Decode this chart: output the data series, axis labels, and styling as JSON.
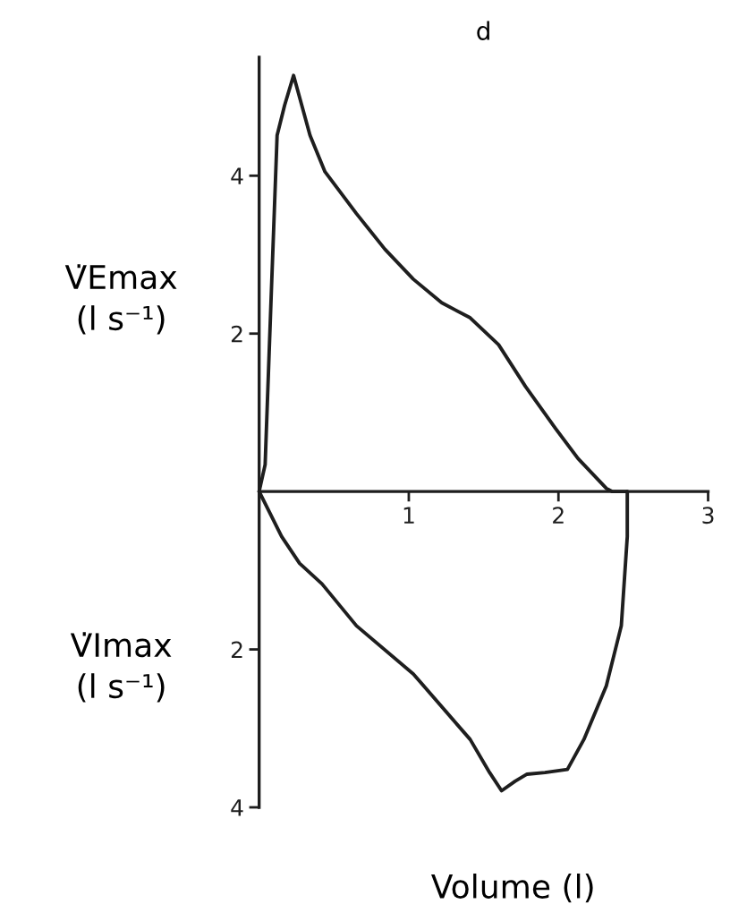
{
  "chart_data": [
    {
      "type": "line",
      "title": "d",
      "ylabel": "V̇Emax\n(l s⁻¹)",
      "x": [
        0,
        0.04,
        0.08,
        0.12,
        0.17,
        0.23,
        0.34,
        0.44,
        0.65,
        0.84,
        1.03,
        1.22,
        1.41,
        1.6,
        1.78,
        1.98,
        2.13,
        2.32,
        2.36,
        2.46
      ],
      "values": [
        0,
        0.34,
        2.45,
        4.51,
        4.89,
        5.27,
        4.51,
        4.05,
        3.52,
        3.07,
        2.69,
        2.39,
        2.2,
        1.86,
        1.33,
        0.8,
        0.42,
        0.04,
        0,
        0
      ],
      "color": "#1e1e1e",
      "line_style": "solid",
      "xlim": [
        0,
        3
      ],
      "ylim": [
        0,
        5.5
      ],
      "xticks": [
        1,
        2,
        3
      ],
      "yticks": [
        2,
        4
      ]
    },
    {
      "type": "line",
      "ylabel": "V̇Imax\n(l s⁻¹)",
      "xlabel": "Volume (l)",
      "x": [
        2.46,
        2.46,
        2.42,
        2.32,
        2.17,
        2.06,
        1.91,
        1.79,
        1.71,
        1.62,
        1.54,
        1.41,
        1.03,
        0.65,
        0.42,
        0.27,
        0.15,
        0.05,
        0
      ],
      "values": [
        0,
        0.57,
        1.7,
        2.46,
        3.14,
        3.52,
        3.56,
        3.58,
        3.67,
        3.79,
        3.56,
        3.14,
        2.31,
        1.7,
        1.17,
        0.91,
        0.57,
        0.19,
        0
      ],
      "color": "#1e1e1e",
      "line_style": "solid",
      "xlim": [
        0,
        3
      ],
      "ylim": [
        4,
        0
      ],
      "yticks": [
        2,
        4
      ],
      "tick_labels": "y"
    }
  ]
}
